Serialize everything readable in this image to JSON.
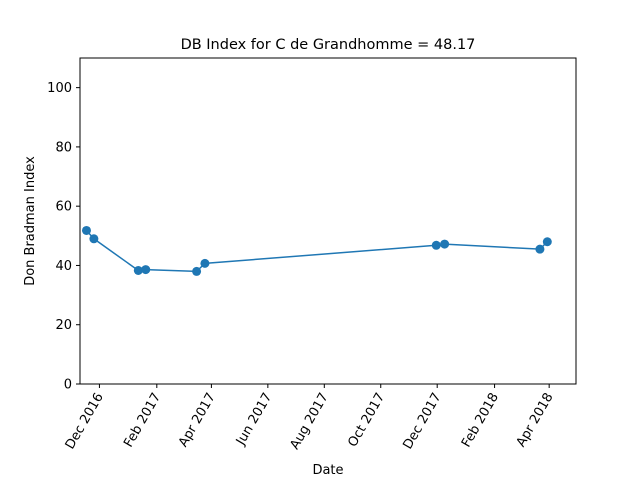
{
  "chart_data": {
    "type": "line",
    "title": "DB Index for C de Grandhomme = 48.17",
    "xlabel": "Date",
    "ylabel": "Don Bradman Index",
    "ylim": [
      0,
      110
    ],
    "xlim": [
      "2016-11-10",
      "2018-04-30"
    ],
    "yticks": [
      0,
      20,
      40,
      60,
      80,
      100
    ],
    "xticks": [
      {
        "date": "2016-12-01",
        "label": "Dec 2016"
      },
      {
        "date": "2017-02-01",
        "label": "Feb 2017"
      },
      {
        "date": "2017-04-01",
        "label": "Apr 2017"
      },
      {
        "date": "2017-06-01",
        "label": "Jun 2017"
      },
      {
        "date": "2017-08-01",
        "label": "Aug 2017"
      },
      {
        "date": "2017-10-01",
        "label": "Oct 2017"
      },
      {
        "date": "2017-12-01",
        "label": "Dec 2017"
      },
      {
        "date": "2018-02-01",
        "label": "Feb 2018"
      },
      {
        "date": "2018-04-01",
        "label": "Apr 2018"
      }
    ],
    "grid": false,
    "color": "#1f77b4",
    "series": [
      {
        "points": [
          {
            "x": "2016-11-17",
            "y": 51.8
          },
          {
            "x": "2016-11-25",
            "y": 49.0
          },
          {
            "x": "2017-01-12",
            "y": 38.3
          },
          {
            "x": "2017-01-20",
            "y": 38.6
          },
          {
            "x": "2017-03-16",
            "y": 38.0
          },
          {
            "x": "2017-03-25",
            "y": 40.7
          },
          {
            "x": "2017-11-30",
            "y": 46.8
          },
          {
            "x": "2017-12-09",
            "y": 47.2
          },
          {
            "x": "2018-03-22",
            "y": 45.5
          },
          {
            "x": "2018-03-30",
            "y": 48.0
          }
        ]
      }
    ]
  }
}
